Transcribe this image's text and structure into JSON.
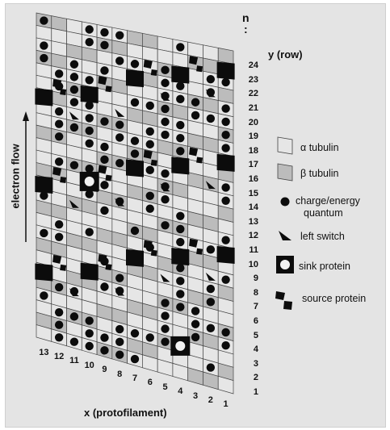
{
  "header": {
    "n_label": "n",
    "ellipsis": ":",
    "y_axis_label": "y (row)"
  },
  "rows": [
    "1",
    "2",
    "3",
    "4",
    "5",
    "6",
    "7",
    "8",
    "9",
    "10",
    "11",
    "12",
    "13",
    "14",
    "15",
    "16",
    "17",
    "18",
    "19",
    "20",
    "21",
    "22",
    "23",
    "24"
  ],
  "columns": [
    "1",
    "2",
    "3",
    "4",
    "5",
    "6",
    "7",
    "8",
    "9",
    "10",
    "11",
    "12",
    "13"
  ],
  "x_axis_label": "x (protofilament)",
  "side_label": "electron flow",
  "legend": {
    "alpha": "α tubulin",
    "beta": "β tubulin",
    "quantum_line1": "charge/energy",
    "quantum_line2": "quantum",
    "switch": "left switch",
    "sink": "sink protein",
    "source": "source protein"
  },
  "colors": {
    "alpha": "#e6e6e6",
    "beta": "#bcbcbc",
    "mark": "#0c0c0c",
    "grid": "#444444"
  }
}
